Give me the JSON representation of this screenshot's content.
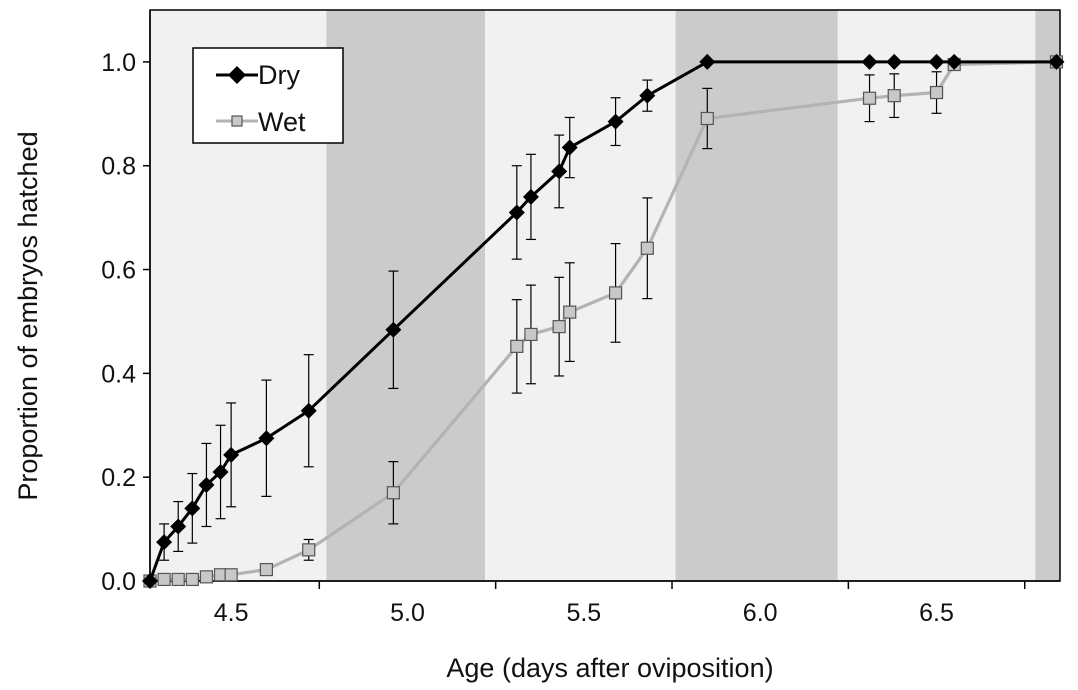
{
  "chart_data": {
    "type": "line",
    "xlabel": "Age (days after oviposition)",
    "ylabel": "Proportion of embryos hatched",
    "xlim": [
      4.27,
      6.85
    ],
    "ylim": [
      0,
      1.1
    ],
    "x_ticks": [
      4.5,
      5.0,
      5.5,
      6.0,
      6.5
    ],
    "x_tick_labels": [
      "4.5",
      "5.0",
      "5.5",
      "6.0",
      "6.5"
    ],
    "y_ticks": [
      0,
      0.2,
      0.4,
      0.6,
      0.8,
      1.0
    ],
    "y_tick_labels": [
      "0.0",
      "0.2",
      "0.4",
      "0.6",
      "0.8",
      "1.0"
    ],
    "x_minor_ticks": [
      4.75,
      5.25,
      5.75,
      6.25,
      6.75
    ],
    "background_bands": [
      {
        "from": 4.27,
        "to": 4.77,
        "shade": "light"
      },
      {
        "from": 4.77,
        "to": 5.22,
        "shade": "dark"
      },
      {
        "from": 5.22,
        "to": 5.76,
        "shade": "light"
      },
      {
        "from": 5.76,
        "to": 6.22,
        "shade": "dark"
      },
      {
        "from": 6.22,
        "to": 6.78,
        "shade": "light"
      },
      {
        "from": 6.78,
        "to": 6.85,
        "shade": "dark"
      }
    ],
    "legend_position": "top-left",
    "series": [
      {
        "name": "Dry",
        "color": "#000000",
        "marker": "diamond",
        "x": [
          4.27,
          4.31,
          4.35,
          4.39,
          4.43,
          4.47,
          4.5,
          4.6,
          4.72,
          4.96,
          5.31,
          5.35,
          5.43,
          5.46,
          5.59,
          5.68,
          5.85,
          6.31,
          6.38,
          6.5,
          6.55,
          6.84
        ],
        "y": [
          0.0,
          0.075,
          0.105,
          0.14,
          0.185,
          0.21,
          0.243,
          0.275,
          0.328,
          0.484,
          0.71,
          0.74,
          0.789,
          0.835,
          0.885,
          0.935,
          1.0,
          1.0,
          1.0,
          1.0,
          1.0,
          1.0
        ],
        "err": [
          0,
          0.035,
          0.048,
          0.067,
          0.08,
          0.09,
          0.1,
          0.112,
          0.108,
          0.113,
          0.09,
          0.082,
          0.07,
          0.058,
          0.046,
          0.03,
          0,
          0,
          0,
          0,
          0,
          0
        ]
      },
      {
        "name": "Wet",
        "color": "#b3b3b3",
        "marker": "square",
        "x": [
          4.27,
          4.31,
          4.35,
          4.39,
          4.43,
          4.47,
          4.5,
          4.6,
          4.72,
          4.96,
          5.31,
          5.35,
          5.43,
          5.46,
          5.59,
          5.68,
          5.85,
          6.31,
          6.38,
          6.5,
          6.55,
          6.84
        ],
        "y": [
          0.0,
          0.003,
          0.003,
          0.003,
          0.008,
          0.012,
          0.012,
          0.022,
          0.06,
          0.17,
          0.452,
          0.475,
          0.49,
          0.518,
          0.555,
          0.641,
          0.891,
          0.93,
          0.935,
          0.941,
          0.995,
          1.0
        ],
        "err": [
          0,
          0,
          0,
          0,
          0,
          0,
          0,
          0,
          0.02,
          0.06,
          0.09,
          0.095,
          0.095,
          0.095,
          0.095,
          0.097,
          0.058,
          0.045,
          0.042,
          0.04,
          0,
          0
        ]
      }
    ]
  }
}
